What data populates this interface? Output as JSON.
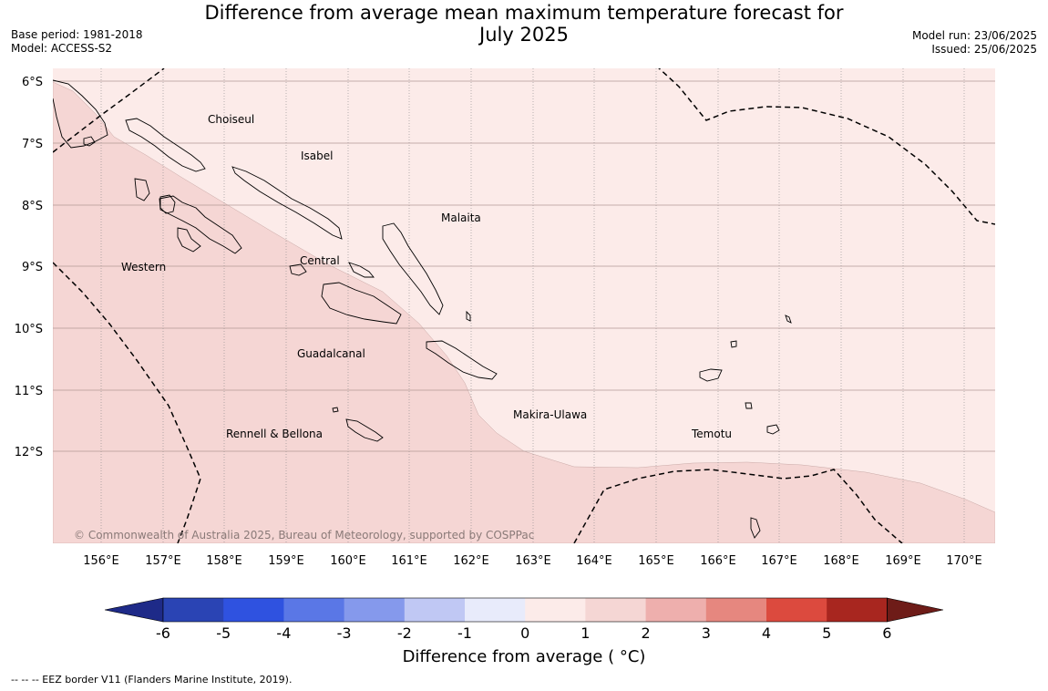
{
  "header": {
    "title_line1": "Difference from average mean maximum temperature forecast for",
    "title_line2": "July 2025",
    "base_period": "Base period: 1981-2018",
    "model": "Model: ACCESS-S2",
    "model_run": "Model run: 23/06/2025",
    "issued": "Issued: 25/06/2025"
  },
  "map": {
    "lat_labels": [
      "6°S",
      "7°S",
      "8°S",
      "9°S",
      "10°S",
      "11°S",
      "12°S"
    ],
    "lon_labels": [
      "156°E",
      "157°E",
      "158°E",
      "159°E",
      "160°E",
      "161°E",
      "162°E",
      "163°E",
      "164°E",
      "165°E",
      "166°E",
      "167°E",
      "168°E",
      "169°E",
      "170°E"
    ],
    "region_labels": [
      "Choiseul",
      "Isabel",
      "Malaita",
      "Western",
      "Central",
      "Guadalcanal",
      "Makira-Ulawa",
      "Temotu",
      "Rennell & Bellona"
    ],
    "copyright": "© Commonwealth of Australia 2025, Bureau of Meteorology, supported by COSPPac",
    "shading": {
      "range_0_1_color": "#fcebe9",
      "range_1_2_color": "#f5d6d4",
      "border_color": "#000000"
    }
  },
  "colorbar": {
    "title": "Difference from average ( °C)",
    "tick_labels": [
      "-6",
      "-5",
      "-4",
      "-3",
      "-2",
      "-1",
      "0",
      "1",
      "2",
      "3",
      "4",
      "5",
      "6"
    ],
    "colors": [
      "#1e2a88",
      "#2a44b4",
      "#2f52e0",
      "#5a77e6",
      "#8599ec",
      "#c0c8f4",
      "#e8ebfb",
      "#fcebe9",
      "#f5d6d4",
      "#eeafad",
      "#e6877f",
      "#dc4a3e",
      "#a8261f",
      "#6e1c18"
    ]
  },
  "footer": {
    "eez_note": "--  --  -- EEZ border V11 (Flanders Marine Institute, 2019)."
  }
}
